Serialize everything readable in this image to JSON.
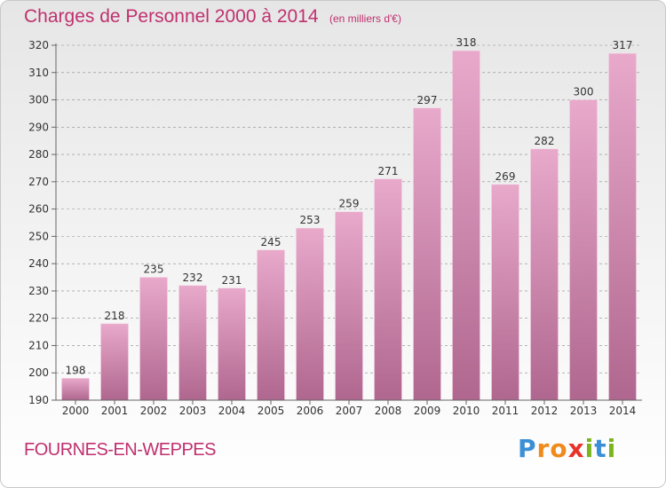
{
  "header": {
    "title": "Charges de Personnel 2000 à 2014",
    "subtitle": "(en milliers d'€)"
  },
  "footer": {
    "location": "FOURNES-EN-WEPPES",
    "brand_letters": [
      "P",
      "r",
      "o",
      "x",
      "i",
      "t",
      "i"
    ],
    "brand_colors": [
      "#3a8fd6",
      "#f08a1c",
      "#f08a1c",
      "#e8332a",
      "#7ab51d",
      "#3a8fd6",
      "#7ab51d"
    ]
  },
  "colors": {
    "accent": "#c0306f",
    "bar_top": "#e8a9cb",
    "bar_bottom": "#b0678f",
    "grid": "#8c8c8c"
  },
  "chart_data": {
    "type": "bar",
    "categories": [
      "2000",
      "2001",
      "2002",
      "2003",
      "2004",
      "2005",
      "2006",
      "2007",
      "2008",
      "2009",
      "2010",
      "2011",
      "2012",
      "2013",
      "2014"
    ],
    "values": [
      198,
      218,
      235,
      232,
      231,
      245,
      253,
      259,
      271,
      297,
      318,
      269,
      282,
      300,
      317
    ],
    "ylim": [
      190,
      320
    ],
    "yticks": [
      190,
      200,
      210,
      220,
      230,
      240,
      250,
      260,
      270,
      280,
      290,
      300,
      310,
      320
    ],
    "grid": true,
    "data_labels": true
  }
}
